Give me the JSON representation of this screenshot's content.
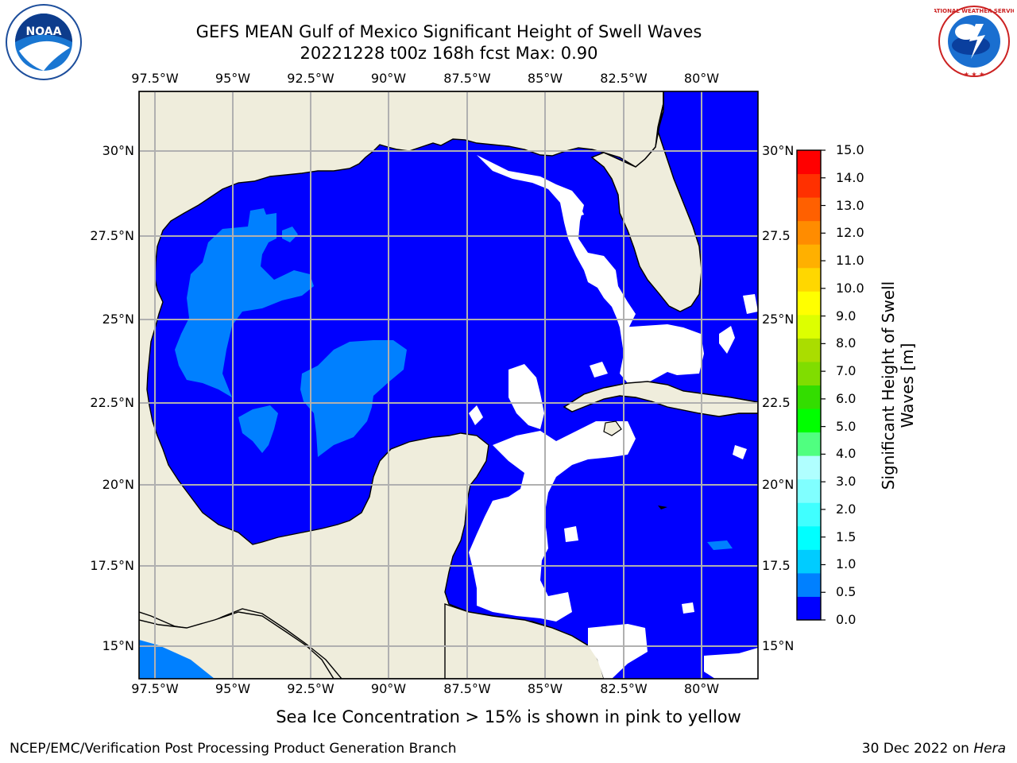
{
  "header": {
    "title_line1": "GEFS MEAN Gulf of Mexico Significant Height of Swell Waves",
    "title_line2": "20221228 t00z 168h fcst   Max: 0.90"
  },
  "logos": {
    "left": "NOAA",
    "right_text": "NATIONAL WEATHER SERVICE"
  },
  "map": {
    "lon_labels": [
      "97.5°W",
      "95°W",
      "92.5°W",
      "90°W",
      "87.5°W",
      "85°W",
      "82.5°W",
      "80°W"
    ],
    "lat_labels_left": [
      "30°N",
      "27.5°N",
      "25°N",
      "22.5°N",
      "20°N",
      "17.5°N",
      "15°N"
    ],
    "lat_labels_right": [
      "30°N",
      "27.5",
      "25°N",
      "22.5",
      "20°N",
      "17.5",
      "15°N"
    ],
    "colors": {
      "ocean_low": "#0000ff",
      "ocean_mid": "#0080ff",
      "land": "#efeddc",
      "grid": "#b0b0b0"
    }
  },
  "colorbar": {
    "title": "Significant Height of Swell Waves [m]",
    "tick_labels": [
      "0.0",
      "0.5",
      "1.0",
      "1.5",
      "2.0",
      "3.0",
      "4.0",
      "5.0",
      "6.0",
      "7.0",
      "8.0",
      "9.0",
      "10.0",
      "11.0",
      "12.0",
      "13.0",
      "14.0",
      "15.0"
    ],
    "colors": [
      "#0000ff",
      "#0080ff",
      "#00ccff",
      "#00ffff",
      "#40ffff",
      "#80ffff",
      "#b0ffff",
      "#50ff80",
      "#00ff00",
      "#33dd00",
      "#80dd00",
      "#aadd00",
      "#ddff00",
      "#ffff00",
      "#ffd700",
      "#ffb000",
      "#ff8c00",
      "#ff6000",
      "#ff3000",
      "#ff0000"
    ]
  },
  "note": "Sea Ice Concentration > 15% is shown in pink to yellow",
  "footer": {
    "left": "NCEP/EMC/Verification Post Processing Product Generation Branch",
    "right_prefix": "30 Dec 2022 on ",
    "right_host": "Hera"
  }
}
